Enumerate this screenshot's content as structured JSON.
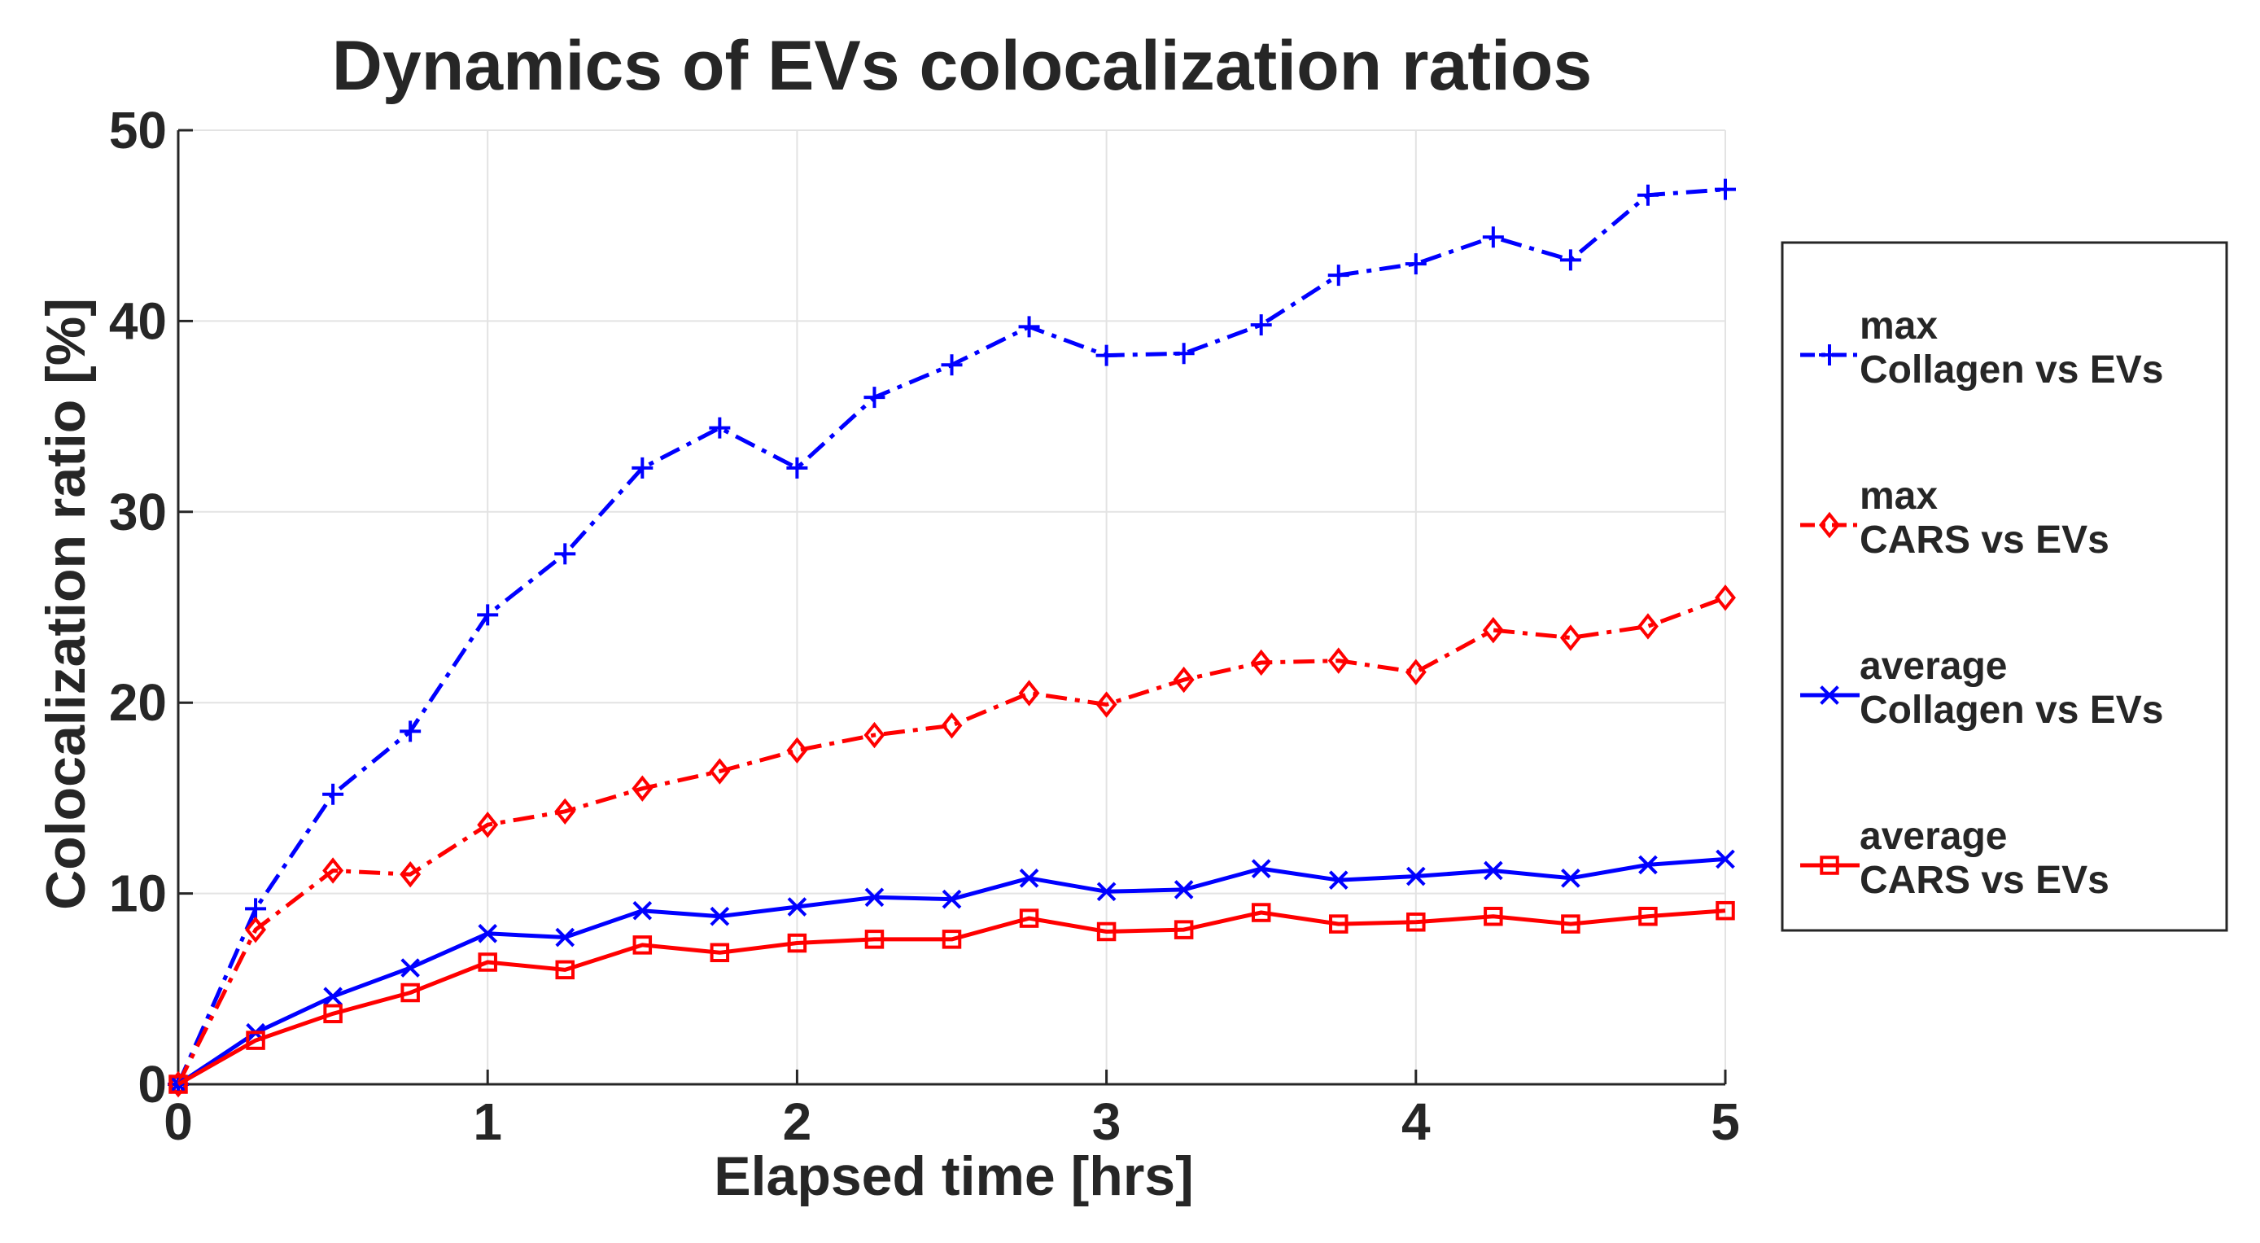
{
  "chart_data": {
    "type": "line",
    "title": "Dynamics of EVs colocalization ratios",
    "xlabel": "Elapsed time [hrs]",
    "ylabel": "Colocalization ratio [%]",
    "xlim": [
      0,
      5
    ],
    "ylim": [
      0,
      50
    ],
    "grid": true,
    "legend_position": "outside-right",
    "x": [
      0,
      0.25,
      0.5,
      0.75,
      1,
      1.25,
      1.5,
      1.75,
      2,
      2.25,
      2.5,
      2.75,
      3,
      3.25,
      3.5,
      3.75,
      4,
      4.25,
      4.5,
      4.75,
      5
    ],
    "xticks": [
      {
        "value": 0,
        "label": "0"
      },
      {
        "value": 1,
        "label": "1"
      },
      {
        "value": 2,
        "label": "2"
      },
      {
        "value": 3,
        "label": "3"
      },
      {
        "value": 4,
        "label": "4"
      },
      {
        "value": 5,
        "label": "5"
      }
    ],
    "yticks": [
      {
        "value": 0,
        "label": "0"
      },
      {
        "value": 10,
        "label": "10"
      },
      {
        "value": 20,
        "label": "20"
      },
      {
        "value": 30,
        "label": "30"
      },
      {
        "value": 40,
        "label": "40"
      },
      {
        "value": 50,
        "label": "50"
      }
    ],
    "series": [
      {
        "name_line1": "max",
        "name_line2": "Collagen vs EVs",
        "color": "#0000ff",
        "line_style": "dashdot",
        "marker": "plus",
        "values": [
          0,
          9.2,
          15.2,
          18.5,
          24.6,
          27.8,
          32.3,
          34.4,
          32.3,
          36.0,
          37.7,
          39.7,
          38.2,
          38.3,
          39.8,
          42.4,
          43.0,
          44.4,
          43.2,
          46.6,
          46.9
        ]
      },
      {
        "name_line1": "max",
        "name_line2": "CARS vs EVs",
        "color": "#ff0000",
        "line_style": "dashdot",
        "marker": "diamond",
        "values": [
          0,
          8.1,
          11.2,
          11.0,
          13.6,
          14.3,
          15.5,
          16.4,
          17.5,
          18.3,
          18.8,
          20.5,
          19.9,
          21.2,
          22.1,
          22.2,
          21.6,
          23.8,
          23.4,
          24.0,
          25.5
        ]
      },
      {
        "name_line1": "average",
        "name_line2": "Collagen vs EVs",
        "color": "#0000ff",
        "line_style": "solid",
        "marker": "x",
        "values": [
          0,
          2.7,
          4.6,
          6.1,
          7.9,
          7.7,
          9.1,
          8.8,
          9.3,
          9.8,
          9.7,
          10.8,
          10.1,
          10.2,
          11.3,
          10.7,
          10.9,
          11.2,
          10.8,
          11.5,
          11.8
        ]
      },
      {
        "name_line1": "average",
        "name_line2": "CARS vs EVs",
        "color": "#ff0000",
        "line_style": "solid",
        "marker": "square",
        "values": [
          0,
          2.3,
          3.7,
          4.8,
          6.4,
          6.0,
          7.3,
          6.9,
          7.4,
          7.6,
          7.6,
          8.7,
          8.0,
          8.1,
          9.0,
          8.4,
          8.5,
          8.8,
          8.4,
          8.8,
          9.1
        ]
      }
    ]
  }
}
